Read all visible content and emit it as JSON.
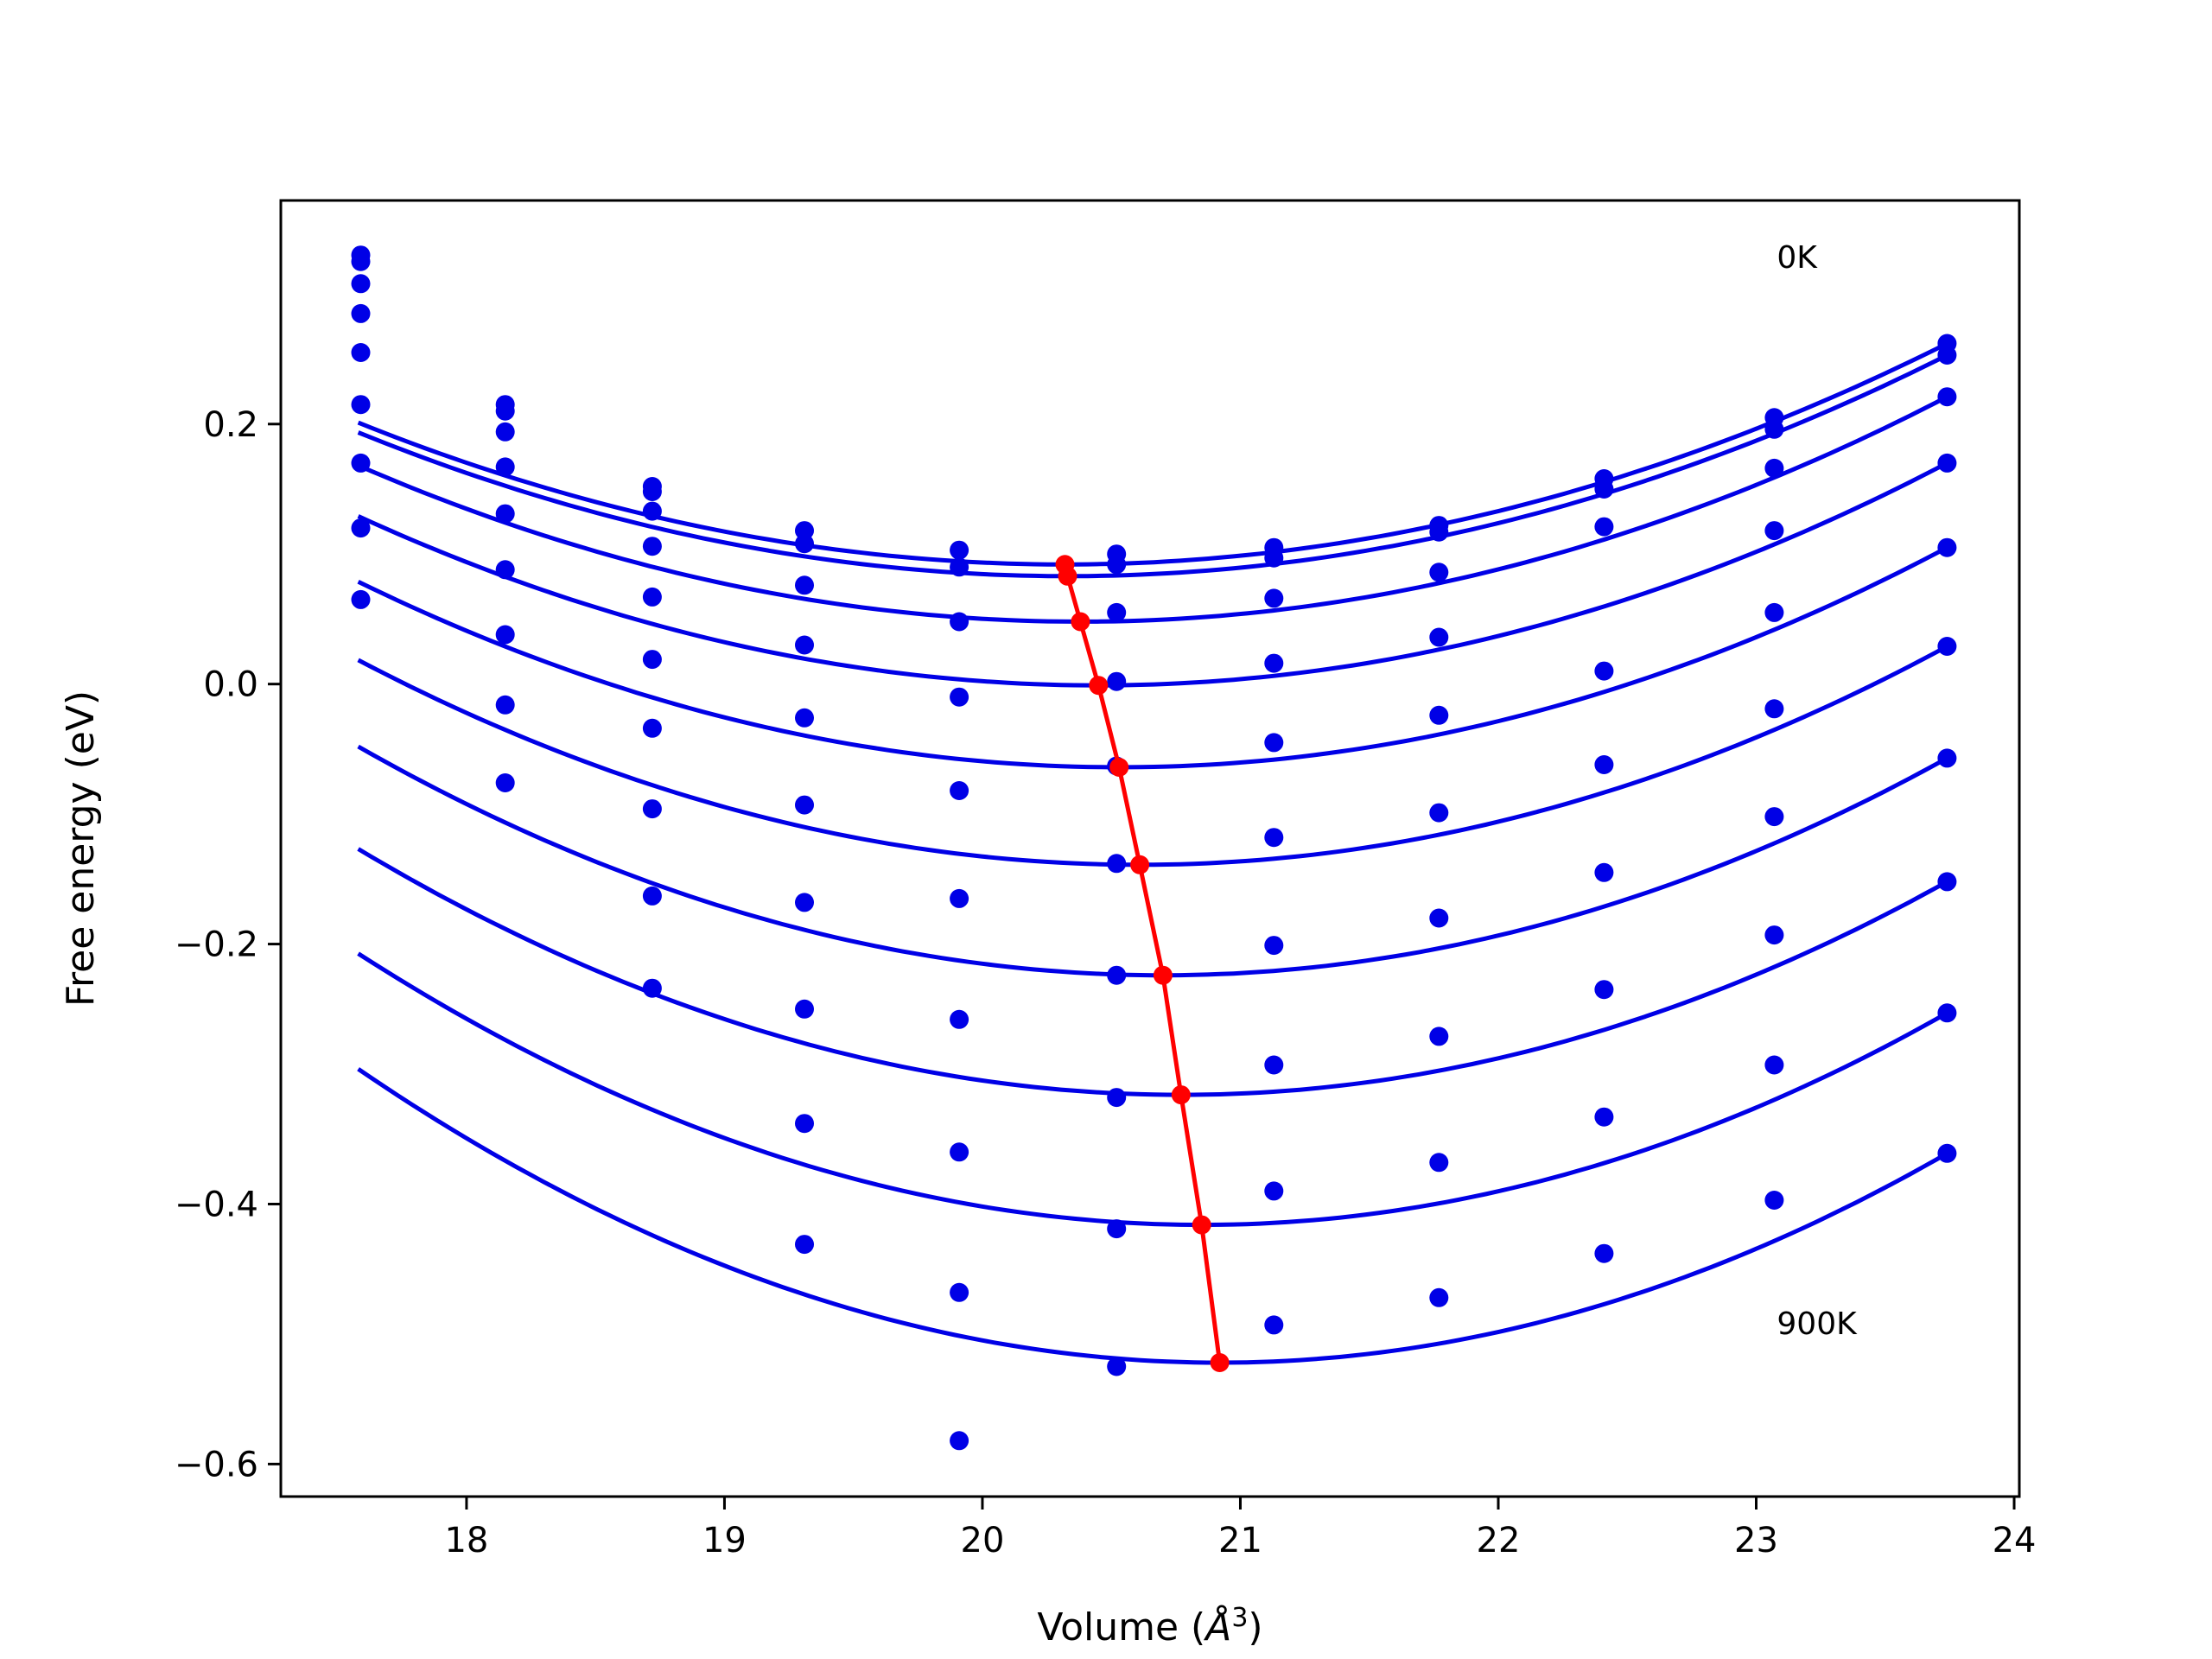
{
  "chart_data": {
    "type": "line",
    "title": "",
    "xlabel": "Volume",
    "xlabel_unit_base": "Å",
    "xlabel_unit_exp": "3",
    "ylabel": "Free energy (eV)",
    "xlim": [
      17.28,
      24.02
    ],
    "ylim": [
      -0.625,
      0.372
    ],
    "xticks": [
      18,
      19,
      20,
      21,
      22,
      23,
      24
    ],
    "xtick_labels": [
      "18",
      "19",
      "20",
      "21",
      "22",
      "23",
      "24"
    ],
    "yticks": [
      -0.6,
      -0.4,
      -0.2,
      0.0,
      0.2
    ],
    "ytick_labels": [
      "−0.6",
      "−0.4",
      "−0.2",
      "0.0",
      "0.2"
    ],
    "grid": false,
    "annotations": [
      {
        "text": "0K",
        "x": 23.08,
        "y": 0.32
      },
      {
        "text": "900K",
        "x": 23.08,
        "y": -0.5
      }
    ],
    "colors": {
      "curves": "#0000e6",
      "points": "#0000e6",
      "minimum_line": "#ff0000"
    },
    "volumes": [
      17.59,
      18.15,
      18.72,
      19.31,
      19.91,
      20.52,
      21.13,
      21.77,
      22.41,
      23.07,
      23.74
    ],
    "curves": [
      {
        "points": [
          0.33,
          0.215,
          0.152,
          0.118,
          0.103,
          0.1,
          0.105,
          0.122,
          0.158,
          0.205,
          0.262
        ],
        "fit_min_v": 20.32,
        "fit_min_f": 0.092
      },
      {
        "points": [
          0.325,
          0.21,
          0.148,
          0.108,
          0.09,
          0.092,
          0.097,
          0.117,
          0.15,
          0.196,
          0.253
        ],
        "fit_min_v": 20.33,
        "fit_min_f": 0.083
      },
      {
        "points": [
          0.308,
          0.194,
          0.133,
          0.076,
          0.048,
          0.055,
          0.066,
          0.086,
          0.121,
          0.166,
          0.221
        ],
        "fit_min_v": 20.38,
        "fit_min_f": 0.048
      },
      {
        "points": [
          0.285,
          0.167,
          0.106,
          0.03,
          -0.01,
          0.002,
          0.016,
          0.036,
          0.01,
          0.118,
          0.17
        ],
        "fit_min_v": 20.45,
        "fit_min_f": -0.001
      },
      {
        "points": [
          0.255,
          0.131,
          0.067,
          -0.026,
          -0.082,
          -0.063,
          -0.045,
          -0.024,
          -0.062,
          0.055,
          0.105
        ],
        "fit_min_v": 20.53,
        "fit_min_f": -0.064
      },
      {
        "points": [
          0.215,
          0.088,
          0.019,
          -0.093,
          -0.165,
          -0.138,
          -0.118,
          -0.099,
          -0.145,
          -0.019,
          0.029
        ],
        "fit_min_v": 20.61,
        "fit_min_f": -0.139
      },
      {
        "points": [
          0.17,
          0.038,
          -0.034,
          -0.168,
          -0.258,
          -0.224,
          -0.201,
          -0.18,
          -0.235,
          -0.102,
          -0.057
        ],
        "fit_min_v": 20.7,
        "fit_min_f": -0.224
      },
      {
        "points": [
          0.12,
          -0.016,
          -0.096,
          -0.25,
          -0.36,
          -0.318,
          -0.293,
          -0.271,
          -0.333,
          -0.193,
          -0.152
        ],
        "fit_min_v": 20.77,
        "fit_min_f": -0.316
      },
      {
        "points": [
          0.065,
          -0.076,
          -0.163,
          -0.338,
          -0.468,
          -0.419,
          -0.39,
          -0.368,
          -0.438,
          -0.293,
          -0.253
        ],
        "fit_min_v": 20.85,
        "fit_min_f": -0.416
      },
      {
        "points": [
          null,
          null,
          -0.234,
          -0.431,
          -0.582,
          -0.525,
          -0.493,
          -0.472,
          null,
          -0.397,
          -0.361
        ],
        "fit_min_v": 20.92,
        "fit_min_f": -0.522
      }
    ]
  }
}
